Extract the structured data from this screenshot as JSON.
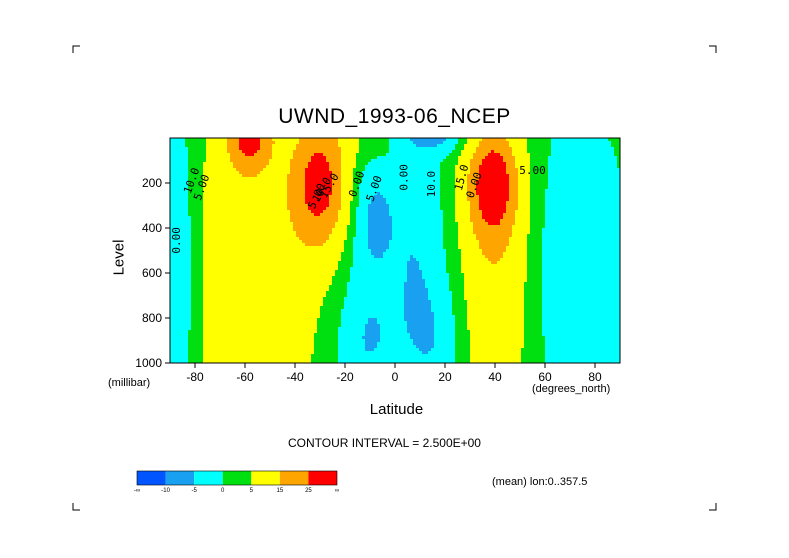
{
  "title": "UWND_1993-06_NCEP",
  "contour_interval": "CONTOUR INTERVAL = 2.500E+00",
  "mean_note": "(mean) lon:0..357.5",
  "colorbar": {
    "colors": [
      "#0055ff",
      "#1aa0f0",
      "#00ffff",
      "#00e010",
      "#ffff00",
      "#ffa500",
      "#ff0000"
    ],
    "labels": [
      "-∞",
      "-10",
      "-5",
      "0",
      "5",
      "15",
      "25",
      "∞"
    ]
  },
  "chart_data": {
    "type": "heatmap",
    "title": "UWND_1993-06_NCEP",
    "xlabel": "Latitude",
    "ylabel": "Level",
    "x_units": "(degrees_north)",
    "y_units": "(millibar)",
    "xlim": [
      -90,
      90
    ],
    "ylim": [
      1000,
      0
    ],
    "x_ticks": [
      -80,
      -60,
      -40,
      -20,
      0,
      20,
      40,
      60,
      80
    ],
    "x_tick_labels": [
      "-80",
      "-60",
      "-40",
      "-20",
      "0",
      "20",
      "40",
      "60",
      "80"
    ],
    "y_ticks": [
      200,
      400,
      600,
      800,
      1000
    ],
    "y_tick_labels": [
      "200",
      "400",
      "600",
      "800",
      "1000"
    ],
    "contour_interval": 2.5,
    "contour_labels": [
      "10.0",
      "5.00",
      "0.00",
      "15.0",
      "10.0",
      "5.00",
      "0.00",
      "5.00",
      "0.00",
      "10.0",
      "15.0",
      "0.00",
      "5.00"
    ],
    "features": [
      {
        "lat": -30,
        "level": 200,
        "value": 27
      },
      {
        "lat": -58,
        "level": 0,
        "value": 27
      },
      {
        "lat": 39,
        "level": 200,
        "value": 27
      },
      {
        "lat": -10,
        "level": 350,
        "value": -7
      },
      {
        "lat": -12,
        "level": 900,
        "value": -7
      }
    ]
  }
}
